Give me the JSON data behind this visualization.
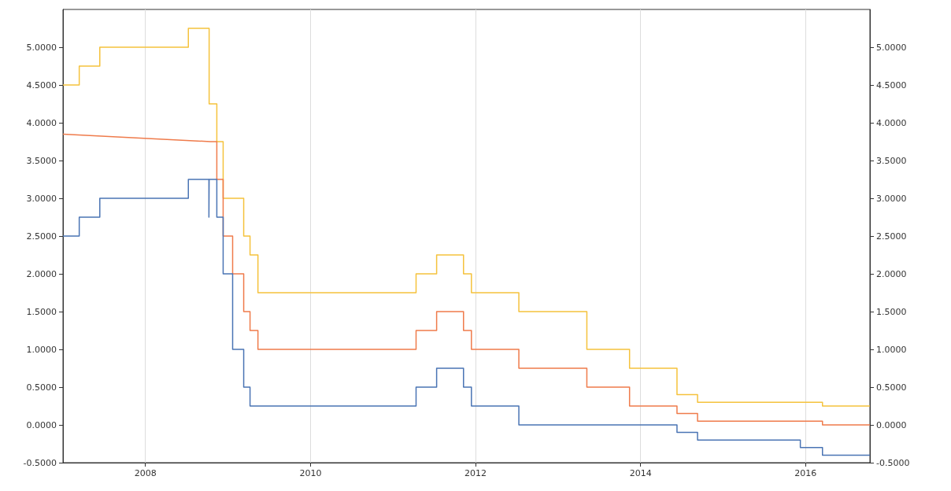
{
  "chart_data": {
    "type": "step",
    "marker": "none",
    "grid": "x",
    "xlim": [
      "2007-01-01",
      "2016-10-12"
    ],
    "xticks": [
      {
        "value": "2008-01-01",
        "label": "2008"
      },
      {
        "value": "2010-01-01",
        "label": "2010"
      },
      {
        "value": "2012-01-01",
        "label": "2012"
      },
      {
        "value": "2014-01-01",
        "label": "2014"
      },
      {
        "value": "2016-01-01",
        "label": "2016"
      }
    ],
    "ylim": [
      -0.5,
      5.5
    ],
    "yticks": [
      {
        "value": -0.5,
        "label": "-0.5000"
      },
      {
        "value": 0,
        "label": "0.0000"
      },
      {
        "value": 0.5,
        "label": "0.5000"
      },
      {
        "value": 1,
        "label": "1.0000"
      },
      {
        "value": 1.5,
        "label": "1.5000"
      },
      {
        "value": 2,
        "label": "2.0000"
      },
      {
        "value": 2.5,
        "label": "2.5000"
      },
      {
        "value": 3,
        "label": "3.0000"
      },
      {
        "value": 3.5,
        "label": "3.5000"
      },
      {
        "value": 4,
        "label": "4.0000"
      },
      {
        "value": 4.5,
        "label": "4.5000"
      },
      {
        "value": 5,
        "label": "5.0000"
      }
    ],
    "y2lim": [
      -0.5,
      5.5
    ],
    "y2ticks": [
      {
        "value": -0.5,
        "label": "-0.5000"
      },
      {
        "value": 0,
        "label": "0.0000"
      },
      {
        "value": 0.5,
        "label": "0.5000"
      },
      {
        "value": 1,
        "label": "1.0000"
      },
      {
        "value": 1.5,
        "label": "1.5000"
      },
      {
        "value": 2,
        "label": "2.0000"
      },
      {
        "value": 2.5,
        "label": "2.5000"
      },
      {
        "value": 3,
        "label": "3.0000"
      },
      {
        "value": 3.5,
        "label": "3.5000"
      },
      {
        "value": 4,
        "label": "4.0000"
      },
      {
        "value": 4.5,
        "label": "4.5000"
      },
      {
        "value": 5,
        "label": "5.0000"
      }
    ],
    "series": [
      {
        "color": "#f5c23c",
        "x": [
          "2007-01-01",
          "2007-03-14",
          "2007-06-13",
          "2008-07-09",
          "2008-10-09",
          "2008-11-12",
          "2008-12-10",
          "2009-03-11",
          "2009-04-08",
          "2009-05-13",
          "2011-04-13",
          "2011-07-13",
          "2011-11-09",
          "2011-12-14",
          "2012-07-11",
          "2013-05-08",
          "2013-11-13",
          "2014-06-11",
          "2014-09-10",
          "2016-03-16",
          "2016-10-12"
        ],
        "values": [
          4.5,
          4.75,
          5.0,
          5.25,
          4.25,
          3.75,
          3.0,
          2.5,
          2.25,
          1.75,
          2.0,
          2.25,
          2.0,
          1.75,
          1.5,
          1.0,
          0.75,
          0.4,
          0.3,
          0.25,
          0.25
        ]
      },
      {
        "type": "line",
        "color": "#ef7b4b",
        "x": [
          "2007-01-01",
          "2008-10-15",
          "2008-11-12",
          "2008-11-12",
          "2008-12-10",
          "2008-12-10",
          "2009-01-21",
          "2009-01-21",
          "2009-03-11",
          "2009-03-11",
          "2009-04-08",
          "2009-04-08",
          "2009-05-13",
          "2009-05-13",
          "2011-04-13",
          "2011-04-13",
          "2011-07-13",
          "2011-07-13",
          "2011-11-09",
          "2011-11-09",
          "2011-12-14",
          "2011-12-14",
          "2012-07-11",
          "2012-07-11",
          "2013-05-08",
          "2013-05-08",
          "2013-11-13",
          "2013-11-13",
          "2014-06-11",
          "2014-06-11",
          "2014-09-10",
          "2014-09-10",
          "2016-03-16",
          "2016-03-16",
          "2016-10-12"
        ],
        "values": [
          3.85,
          3.75,
          3.75,
          3.25,
          3.25,
          2.5,
          2.5,
          2.0,
          2.0,
          1.5,
          1.5,
          1.25,
          1.25,
          1.0,
          1.0,
          1.25,
          1.25,
          1.5,
          1.5,
          1.25,
          1.25,
          1.0,
          1.0,
          0.75,
          0.75,
          0.5,
          0.5,
          0.25,
          0.25,
          0.15,
          0.15,
          0.05,
          0.05,
          0.0,
          0.0
        ]
      },
      {
        "color": "#4a74b4",
        "x": [
          "2007-01-01",
          "2007-03-14",
          "2007-06-13",
          "2008-07-09",
          "2008-10-08",
          "2008-10-09",
          "2008-11-12",
          "2008-12-10",
          "2009-01-21",
          "2009-03-11",
          "2009-04-08",
          "2011-04-13",
          "2011-07-13",
          "2011-11-09",
          "2011-12-14",
          "2012-07-11",
          "2014-06-11",
          "2014-09-10",
          "2015-12-09",
          "2016-03-16",
          "2016-10-12"
        ],
        "values": [
          2.5,
          2.75,
          3.0,
          3.25,
          2.75,
          3.25,
          2.75,
          2.0,
          1.0,
          0.5,
          0.25,
          0.5,
          0.75,
          0.5,
          0.25,
          0.0,
          -0.1,
          -0.2,
          -0.3,
          -0.4,
          -0.4
        ]
      }
    ]
  }
}
